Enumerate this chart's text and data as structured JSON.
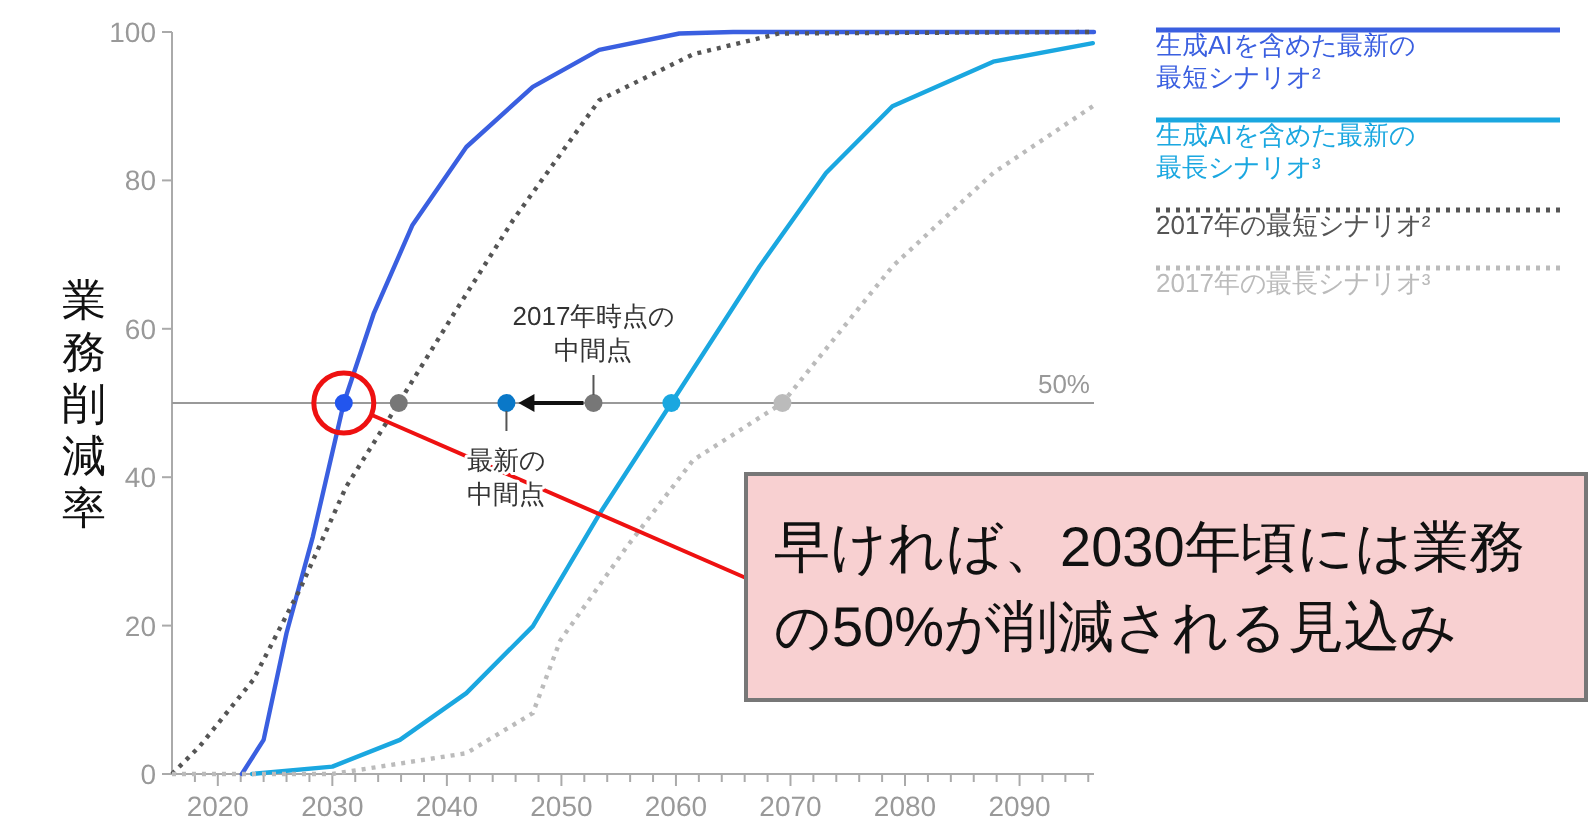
{
  "chart_data": {
    "type": "line",
    "ylabel": "業務削減率",
    "xlim": [
      2016,
      2096.5
    ],
    "ylim": [
      0,
      100
    ],
    "yticks": [
      0,
      20,
      40,
      60,
      80,
      100
    ],
    "xticks": [
      {
        "value": 2018,
        "label": null
      },
      2020,
      {
        "value": 2022,
        "label": null
      },
      {
        "value": 2024,
        "label": null
      },
      {
        "value": 2026,
        "label": null
      },
      {
        "value": 2028,
        "label": null
      },
      2030,
      {
        "value": 2032,
        "label": null
      },
      {
        "value": 2034,
        "label": null
      },
      {
        "value": 2036,
        "label": null
      },
      {
        "value": 2038,
        "label": null
      },
      2040,
      {
        "value": 2042,
        "label": null
      },
      {
        "value": 2044,
        "label": null
      },
      {
        "value": 2046,
        "label": null
      },
      {
        "value": 2048,
        "label": null
      },
      2050,
      {
        "value": 2052,
        "label": null
      },
      {
        "value": 2054,
        "label": null
      },
      {
        "value": 2056,
        "label": null
      },
      {
        "value": 2058,
        "label": null
      },
      2060,
      {
        "value": 2062,
        "label": null
      },
      {
        "value": 2064,
        "label": null
      },
      {
        "value": 2066,
        "label": null
      },
      {
        "value": 2068,
        "label": null
      },
      2070,
      {
        "value": 2072,
        "label": null
      },
      {
        "value": 2074,
        "label": null
      },
      {
        "value": 2076,
        "label": null
      },
      {
        "value": 2078,
        "label": null
      },
      2080,
      {
        "value": 2082,
        "label": null
      },
      {
        "value": 2084,
        "label": null
      },
      {
        "value": 2086,
        "label": null
      },
      {
        "value": 2088,
        "label": null
      },
      2090,
      {
        "value": 2092,
        "label": null
      },
      {
        "value": 2094,
        "label": null
      },
      {
        "value": 2096,
        "label": null
      }
    ],
    "legend": "right",
    "series": [
      {
        "name": "生成AIを含めた最新の最短シナリオ²",
        "color": "#3a5fe0",
        "line_style": "solid",
        "x": [
          2022.1,
          2024,
          2026,
          2028.3,
          2031,
          2033.6,
          2037,
          2041.7,
          2047.5,
          2053.3,
          2060.3,
          2065,
          2096.5
        ],
        "values": [
          0,
          4.6,
          19,
          32,
          50,
          62,
          74,
          84.5,
          92.6,
          97.6,
          99.8,
          100,
          100
        ]
      },
      {
        "name": "生成AIを含めた最新の最長シナリオ³",
        "color": "#1aa7e0",
        "line_style": "solid",
        "x": [
          2023,
          2030,
          2035.9,
          2041.7,
          2047.5,
          2053.3,
          2059.6,
          2067.3,
          2073.1,
          2078.9,
          2087.7,
          2096.4
        ],
        "values": [
          0,
          1,
          4.6,
          10.9,
          19.9,
          35,
          50,
          68.4,
          81,
          90,
          96,
          98.5
        ]
      },
      {
        "name": "2017年の最短シナリオ²",
        "color": "#555555",
        "line_style": "dotted",
        "x": [
          2016,
          2018.4,
          2023.1,
          2027.2,
          2031.2,
          2035.8,
          2040.6,
          2045.8,
          2053.3,
          2061.5,
          2069,
          2096.5
        ],
        "values": [
          0,
          3.7,
          12.7,
          25,
          38.7,
          50,
          62,
          74.7,
          90.8,
          97,
          99.8,
          100
        ]
      },
      {
        "name": "2017年の最長シナリオ³",
        "color": "#bbbbbb",
        "line_style": "dotted",
        "x": [
          2016,
          2030,
          2041.7,
          2047.5,
          2049.9,
          2055.7,
          2061.5,
          2069.3,
          2078.9,
          2087.7,
          2096.4
        ],
        "values": [
          0,
          0,
          2.8,
          8.2,
          18,
          30.6,
          42.3,
          50,
          68.4,
          81,
          90
        ]
      },
      {
        "type": "scatter",
        "x": [
          2031,
          2035.8,
          2045.2,
          2052.8,
          2059.6,
          2069.3
        ],
        "values": [
          50,
          50,
          50,
          50,
          50,
          50
        ],
        "colors": [
          "#2255ee",
          "#777777",
          "#0a78c8",
          "#777777",
          "#1aa7e0",
          "#bbbbbb"
        ]
      }
    ],
    "ref_lines": [
      {
        "axis": "y",
        "value": 50,
        "label": "50%",
        "color": "#999999"
      }
    ],
    "annotations": [
      {
        "text": "2017年時点の中間点",
        "x": 2052.8,
        "y": 50
      },
      {
        "text": "最新の中間点",
        "x": 2045.2,
        "y": 50
      },
      "早ければ、2030年頃には業務の50%が削減される見込み"
    ]
  }
}
